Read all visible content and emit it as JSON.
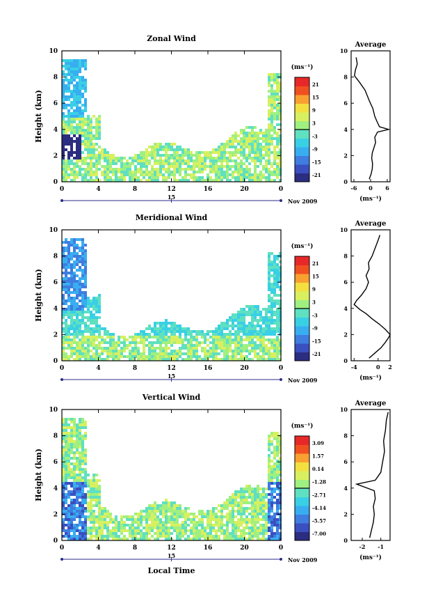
{
  "colors": {
    "colormap": [
      "#2b2d80",
      "#3a4fc0",
      "#3f7de0",
      "#38aef0",
      "#39d0e6",
      "#5fe0c0",
      "#9ff080",
      "#d8f060",
      "#f3e040",
      "#f8a030",
      "#f05020",
      "#e82828"
    ]
  },
  "chart_data": [
    {
      "type": "heatmap",
      "title": "Zonal Wind",
      "ylabel": "Height (km)",
      "xlim": [
        0,
        24
      ],
      "ylim": [
        0,
        10
      ],
      "x_ticks": [
        "0",
        "4",
        "8",
        "12",
        "16",
        "20",
        "0"
      ],
      "y_ticks": [
        "0",
        "2",
        "4",
        "6",
        "8",
        "10"
      ],
      "date_marker": "15",
      "date_label": "Nov 2009",
      "colorbar": {
        "unit": "(ms⁻¹)",
        "ticks": [
          "21",
          "15",
          "9",
          "3",
          "-3",
          "-9",
          "-15",
          "-21"
        ],
        "range": [
          -24,
          24
        ]
      },
      "profile": {
        "title": "Average",
        "xlabel": "(ms⁻¹)",
        "x_ticks": [
          "-6",
          "0",
          "6"
        ],
        "xlim": [
          -7,
          7
        ],
        "y_ticks": [
          "0",
          "2",
          "4",
          "6",
          "8",
          "10"
        ],
        "ylim": [
          0,
          10
        ],
        "points": [
          [
            -0.5,
            0.2
          ],
          [
            0.2,
            0.6
          ],
          [
            0.6,
            1.0
          ],
          [
            0.7,
            1.4
          ],
          [
            0.4,
            1.8
          ],
          [
            0.6,
            2.2
          ],
          [
            1.2,
            2.6
          ],
          [
            1.8,
            3.0
          ],
          [
            1.5,
            3.4
          ],
          [
            2.5,
            3.8
          ],
          [
            6.5,
            4.0
          ],
          [
            3.2,
            4.2
          ],
          [
            2.3,
            4.6
          ],
          [
            1.5,
            5.0
          ],
          [
            0.8,
            5.6
          ],
          [
            -0.5,
            6.2
          ],
          [
            -2.0,
            7.0
          ],
          [
            -4.0,
            7.6
          ],
          [
            -5.8,
            8.1
          ],
          [
            -5.5,
            8.5
          ],
          [
            -4.8,
            9.0
          ],
          [
            -5.2,
            9.5
          ]
        ]
      }
    },
    {
      "type": "heatmap",
      "title": "Meridional Wind",
      "ylabel": "Height (km)",
      "xlim": [
        0,
        24
      ],
      "ylim": [
        0,
        10
      ],
      "x_ticks": [
        "0",
        "4",
        "8",
        "12",
        "16",
        "20",
        "0"
      ],
      "y_ticks": [
        "0",
        "2",
        "4",
        "6",
        "8",
        "10"
      ],
      "date_marker": "15",
      "date_label": "Nov 2009",
      "colorbar": {
        "unit": "(ms⁻¹)",
        "ticks": [
          "21",
          "15",
          "9",
          "3",
          "-3",
          "-9",
          "-15",
          "-21"
        ],
        "range": [
          -24,
          24
        ]
      },
      "profile": {
        "title": "Average",
        "xlabel": "(ms⁻¹)",
        "x_ticks": [
          "-4",
          "0",
          "2"
        ],
        "xlim": [
          -4.5,
          2
        ],
        "y_ticks": [
          "0",
          "2",
          "4",
          "6",
          "8",
          "10"
        ],
        "ylim": [
          0,
          10
        ],
        "points": [
          [
            -1.5,
            0.2
          ],
          [
            -0.5,
            0.6
          ],
          [
            0.5,
            1.0
          ],
          [
            1.2,
            1.4
          ],
          [
            1.8,
            1.8
          ],
          [
            2.0,
            2.0
          ],
          [
            1.2,
            2.4
          ],
          [
            0.2,
            2.8
          ],
          [
            -1.0,
            3.2
          ],
          [
            -2.0,
            3.6
          ],
          [
            -3.0,
            3.9
          ],
          [
            -4.0,
            4.3
          ],
          [
            -3.6,
            4.6
          ],
          [
            -2.8,
            5.0
          ],
          [
            -2.0,
            5.5
          ],
          [
            -1.6,
            6.0
          ],
          [
            -2.0,
            6.5
          ],
          [
            -1.5,
            7.0
          ],
          [
            -1.6,
            7.5
          ],
          [
            -1.0,
            8.0
          ],
          [
            -0.5,
            8.6
          ],
          [
            0.0,
            9.2
          ],
          [
            0.3,
            9.6
          ]
        ]
      }
    },
    {
      "type": "heatmap",
      "title": "Vertical Wind",
      "ylabel": "Height (km)",
      "xlabel": "Local Time",
      "xlim": [
        0,
        24
      ],
      "ylim": [
        0,
        10
      ],
      "x_ticks": [
        "0",
        "4",
        "8",
        "12",
        "16",
        "20",
        "0"
      ],
      "y_ticks": [
        "0",
        "2",
        "4",
        "6",
        "8",
        "10"
      ],
      "date_marker": "15",
      "date_label": "Nov 2009",
      "colorbar": {
        "unit": "(ms⁻¹)",
        "ticks": [
          "3.09",
          "1.57",
          "0.14",
          "-1.28",
          "-2.71",
          "-4.14",
          "-5.57",
          "-7.00"
        ],
        "range": [
          -7.7,
          3.8
        ]
      },
      "profile": {
        "title": "Average",
        "xlabel": "(ms⁻¹)",
        "x_ticks": [
          "-2",
          "-1"
        ],
        "xlim": [
          -2.6,
          -0.5
        ],
        "y_ticks": [
          "0",
          "2",
          "4",
          "6",
          "8",
          "10"
        ],
        "ylim": [
          0,
          10
        ],
        "points": [
          [
            -1.6,
            0.2
          ],
          [
            -1.5,
            0.8
          ],
          [
            -1.4,
            1.4
          ],
          [
            -1.35,
            2.0
          ],
          [
            -1.4,
            2.6
          ],
          [
            -1.3,
            3.2
          ],
          [
            -1.35,
            3.8
          ],
          [
            -2.3,
            4.3
          ],
          [
            -1.3,
            4.6
          ],
          [
            -1.0,
            5.2
          ],
          [
            -0.9,
            6.0
          ],
          [
            -0.8,
            6.8
          ],
          [
            -0.85,
            7.6
          ],
          [
            -0.75,
            8.4
          ],
          [
            -0.7,
            9.2
          ],
          [
            -0.6,
            9.8
          ]
        ]
      }
    }
  ]
}
